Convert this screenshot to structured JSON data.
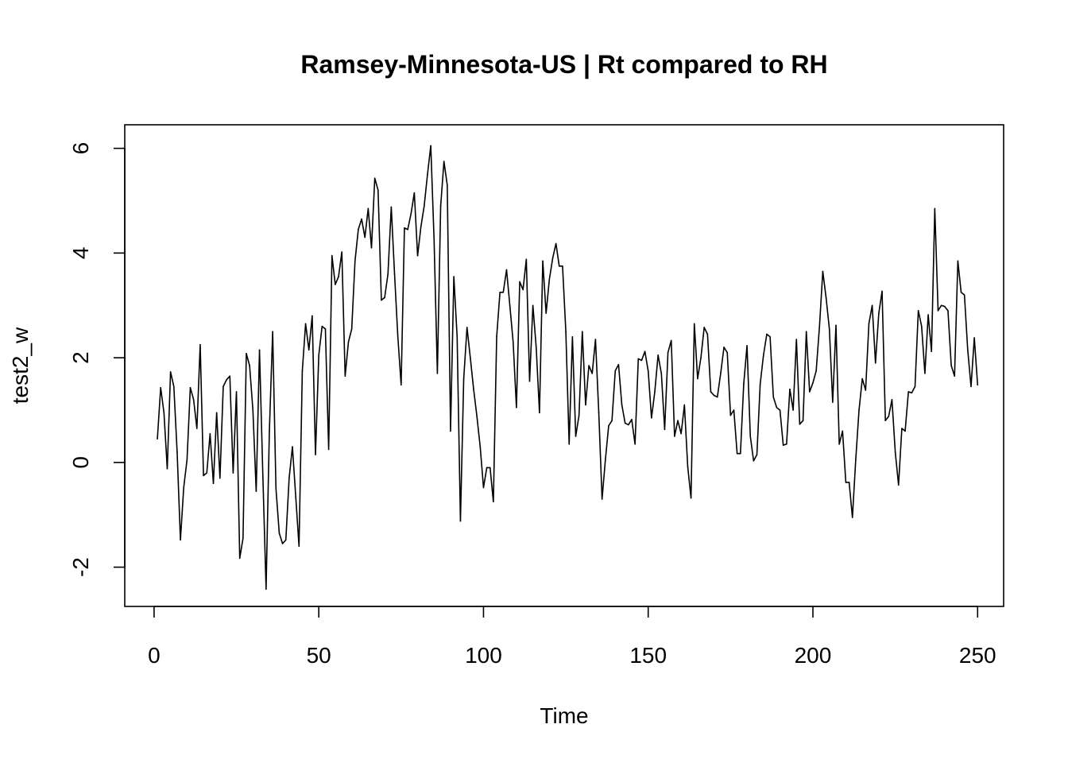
{
  "chart_data": {
    "type": "line",
    "title": "Ramsey-Minnesota-US | Rt compared to RH",
    "xlabel": "Time",
    "ylabel": "test2_w",
    "xlim": [
      -8.9,
      257.9
    ],
    "ylim": [
      -2.75,
      6.45
    ],
    "x_ticks": [
      0,
      50,
      100,
      150,
      200,
      250
    ],
    "x_tick_labels": [
      "0",
      "50",
      "100",
      "150",
      "200",
      "250"
    ],
    "y_ticks": [
      -2,
      0,
      2,
      4,
      6
    ],
    "y_tick_labels": [
      "-2",
      "0",
      "2",
      "4",
      "6"
    ],
    "grid": false,
    "line_color": "#000000",
    "series": [
      {
        "x_start": 1,
        "values": [
          0.45,
          1.43,
          0.95,
          -0.12,
          1.73,
          1.45,
          0.2,
          -1.48,
          -0.48,
          0.05,
          1.43,
          1.2,
          0.65,
          2.25,
          -0.25,
          -0.2,
          0.55,
          -0.4,
          0.95,
          -0.3,
          1.45,
          1.58,
          1.65,
          -0.2,
          1.35,
          -1.83,
          -1.45,
          2.08,
          1.85,
          1.0,
          -0.55,
          2.15,
          -0.2,
          -2.42,
          0.6,
          2.5,
          -0.5,
          -1.35,
          -1.55,
          -1.48,
          -0.3,
          0.3,
          -0.65,
          -1.6,
          1.75,
          2.65,
          2.15,
          2.8,
          0.15,
          2.05,
          2.6,
          2.55,
          0.25,
          3.95,
          3.4,
          3.55,
          4.02,
          1.65,
          2.3,
          2.55,
          3.85,
          4.45,
          4.65,
          4.3,
          4.85,
          4.1,
          5.43,
          5.2,
          3.1,
          3.15,
          3.6,
          4.88,
          3.6,
          2.4,
          1.48,
          4.48,
          4.45,
          4.75,
          5.15,
          3.95,
          4.5,
          4.9,
          5.5,
          6.05,
          4.25,
          1.7,
          4.9,
          5.75,
          5.3,
          0.6,
          3.55,
          2.4,
          -1.12,
          1.6,
          2.58,
          2.0,
          1.4,
          0.88,
          0.3,
          -0.48,
          -0.1,
          -0.1,
          -0.75,
          2.4,
          3.25,
          3.25,
          3.68,
          3.0,
          2.3,
          1.05,
          3.45,
          3.3,
          3.88,
          1.55,
          3.0,
          2.2,
          0.95,
          3.85,
          2.85,
          3.5,
          3.9,
          4.18,
          3.75,
          3.75,
          2.5,
          0.35,
          2.4,
          0.5,
          0.9,
          2.5,
          1.1,
          1.85,
          1.7,
          2.35,
          0.95,
          -0.7,
          0.05,
          0.7,
          0.8,
          1.75,
          1.87,
          1.1,
          0.75,
          0.72,
          0.82,
          0.35,
          1.98,
          1.95,
          2.12,
          1.75,
          0.85,
          1.35,
          2.05,
          1.7,
          0.63,
          2.1,
          2.33,
          0.5,
          0.8,
          0.55,
          1.1,
          -0.08,
          -0.68,
          2.65,
          1.6,
          2.0,
          2.58,
          2.45,
          1.35,
          1.28,
          1.25,
          1.7,
          2.2,
          2.1,
          0.9,
          1.0,
          0.17,
          0.17,
          1.5,
          2.23,
          0.5,
          0.03,
          0.15,
          1.5,
          2.05,
          2.45,
          2.4,
          1.25,
          1.05,
          1.0,
          0.33,
          0.35,
          1.4,
          1.0,
          2.35,
          0.73,
          0.8,
          2.5,
          1.35,
          1.52,
          1.75,
          2.6,
          3.65,
          3.15,
          2.55,
          1.15,
          2.62,
          0.35,
          0.6,
          -0.38,
          -0.38,
          -1.05,
          0.05,
          1.0,
          1.6,
          1.38,
          2.65,
          3.0,
          1.9,
          2.85,
          3.27,
          0.8,
          0.88,
          1.2,
          0.2,
          -0.43,
          0.65,
          0.6,
          1.35,
          1.33,
          1.45,
          2.9,
          2.6,
          1.7,
          2.82,
          2.12,
          4.85,
          2.9,
          3.0,
          2.98,
          2.9,
          1.85,
          1.65,
          3.85,
          3.25,
          3.2,
          2.15,
          1.45,
          2.38,
          1.48
        ]
      }
    ]
  }
}
